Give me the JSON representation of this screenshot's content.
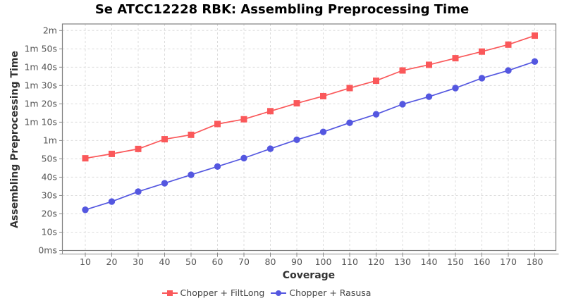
{
  "title": "Se ATCC12228 RBK: Assembling Preprocessing Time",
  "chart_data": {
    "type": "line",
    "title": "Se ATCC12228 RBK: Assembling Preprocessing Time",
    "xlabel": "Coverage",
    "ylabel": "Assembling Preprocessing Time",
    "x": [
      10,
      20,
      30,
      40,
      50,
      60,
      70,
      80,
      90,
      100,
      110,
      120,
      130,
      140,
      150,
      160,
      170,
      180
    ],
    "y_unit": "seconds",
    "ylim": [
      0,
      120
    ],
    "grid": true,
    "legend_position": "bottom",
    "y_ticks": [
      {
        "value": 0,
        "label": "0ms"
      },
      {
        "value": 10,
        "label": "10s"
      },
      {
        "value": 20,
        "label": "20s"
      },
      {
        "value": 30,
        "label": "30s"
      },
      {
        "value": 40,
        "label": "40s"
      },
      {
        "value": 50,
        "label": "50s"
      },
      {
        "value": 60,
        "label": "1m"
      },
      {
        "value": 70,
        "label": "1m 10s"
      },
      {
        "value": 80,
        "label": "1m 20s"
      },
      {
        "value": 90,
        "label": "1m 30s"
      },
      {
        "value": 100,
        "label": "1m 40s"
      },
      {
        "value": 110,
        "label": "1m 50s"
      },
      {
        "value": 120,
        "label": "2m"
      }
    ],
    "series": [
      {
        "name": "Chopper + FiltLong",
        "color": "#fa585a",
        "marker": "square",
        "values": [
          50.3,
          52.7,
          55.4,
          60.7,
          63.1,
          69.0,
          71.6,
          76.0,
          80.3,
          84.2,
          88.6,
          92.6,
          98.2,
          101.3,
          104.9,
          108.5,
          112.3,
          117.2
        ]
      },
      {
        "name": "Chopper + Rasusa",
        "color": "#5457e0",
        "marker": "circle",
        "values": [
          22.2,
          26.7,
          32.1,
          36.7,
          41.3,
          45.8,
          50.4,
          55.5,
          60.4,
          64.7,
          69.7,
          74.3,
          79.8,
          83.9,
          88.6,
          94.0,
          98.2,
          103.1
        ]
      }
    ]
  },
  "colors": {
    "background": "#ffffff",
    "grid": "#dcdcdc",
    "plot_border": "#7f7f7f",
    "axis_line": "#8a8a8a",
    "tick": "#8a8a8a",
    "tick_label": "#555555",
    "title": "#000000",
    "axis_title": "#333333",
    "legend_text": "#444444"
  }
}
